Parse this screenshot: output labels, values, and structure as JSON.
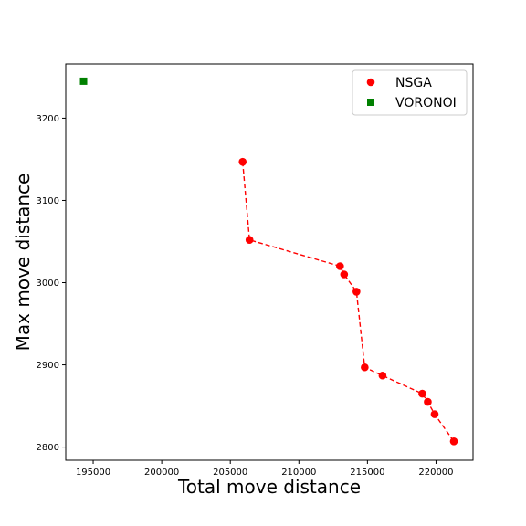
{
  "chart_data": {
    "type": "scatter",
    "xlabel": "Total move distance",
    "ylabel": "Max move distance",
    "xlim": [
      193000,
      222700
    ],
    "ylim": [
      2784,
      3266
    ],
    "xticks": [
      195000,
      200000,
      205000,
      210000,
      215000,
      220000
    ],
    "xtick_labels": [
      "195000",
      "200000",
      "205000",
      "210000",
      "215000",
      "220000"
    ],
    "yticks": [
      2800,
      2900,
      3000,
      3100,
      3200
    ],
    "ytick_labels": [
      "2800",
      "2900",
      "3000",
      "3100",
      "3200"
    ],
    "legend_position": "top-right",
    "grid": false,
    "series": [
      {
        "name": "NSGA",
        "color": "#ff0000",
        "marker": "circle",
        "line": "dashed",
        "points": [
          {
            "x": 205900,
            "y": 3147
          },
          {
            "x": 206400,
            "y": 3052
          },
          {
            "x": 213000,
            "y": 3020
          },
          {
            "x": 213300,
            "y": 3010
          },
          {
            "x": 214200,
            "y": 2989
          },
          {
            "x": 214800,
            "y": 2897
          },
          {
            "x": 216100,
            "y": 2887
          },
          {
            "x": 219000,
            "y": 2865
          },
          {
            "x": 219400,
            "y": 2855
          },
          {
            "x": 219900,
            "y": 2840
          },
          {
            "x": 221300,
            "y": 2807
          }
        ]
      },
      {
        "name": "VORONOI",
        "color": "#008000",
        "marker": "square",
        "line": "none",
        "points": [
          {
            "x": 194300,
            "y": 3245
          }
        ]
      }
    ]
  }
}
